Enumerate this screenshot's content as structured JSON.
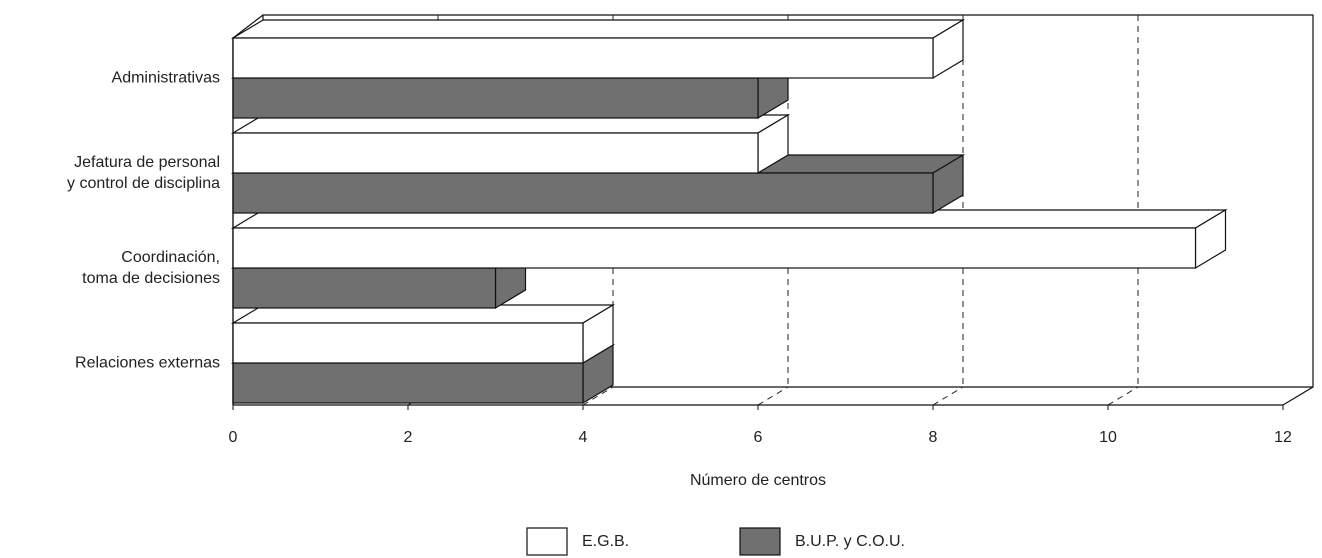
{
  "chart_data": {
    "type": "bar3d_horizontal",
    "categories": [
      "Administrativas",
      "Jefatura de personal\ny control de disciplina",
      "Coordinación,\ntoma de decisiones",
      "Relaciones externas"
    ],
    "series": [
      {
        "name": "E.G.B.",
        "color": "#ffffff",
        "values": [
          8,
          6,
          11,
          4
        ]
      },
      {
        "name": "B.U.P. y C.O.U.",
        "color": "#707070",
        "values": [
          6,
          8,
          3,
          4
        ]
      }
    ],
    "xlabel": "Número de centros",
    "xlim": [
      0,
      12
    ],
    "xticks": [
      0,
      2,
      4,
      6,
      8,
      10,
      12
    ],
    "grid": true,
    "legend": "bottom"
  }
}
